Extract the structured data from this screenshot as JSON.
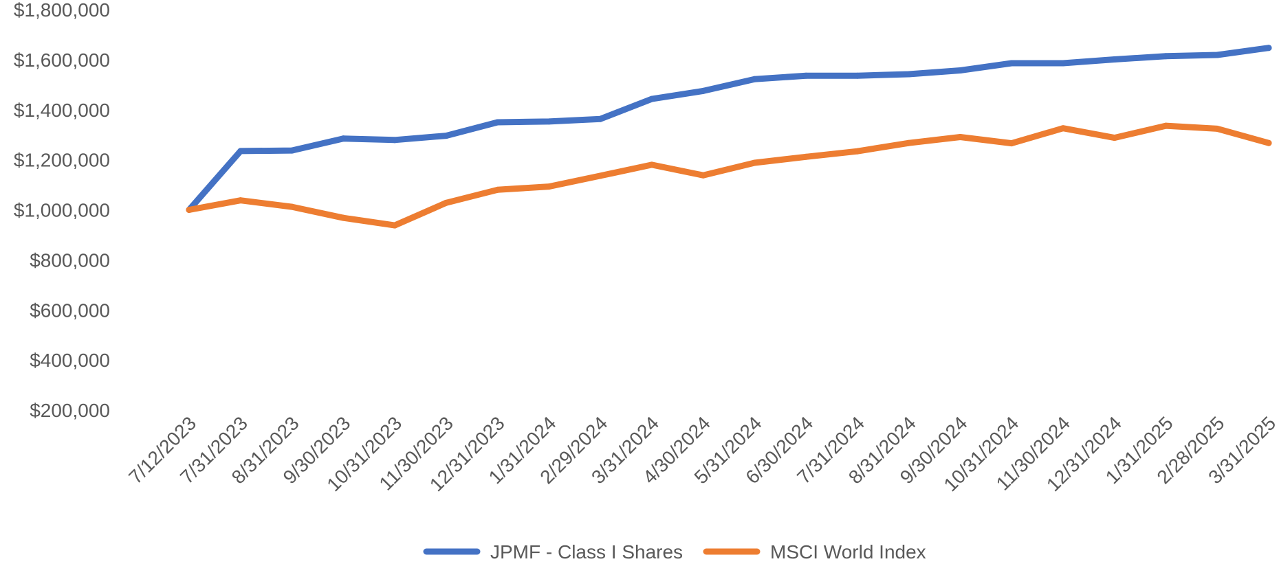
{
  "chart_data": {
    "type": "line",
    "title": "",
    "xlabel": "",
    "ylabel": "",
    "categories": [
      "7/12/2023",
      "7/31/2023",
      "8/31/2023",
      "9/30/2023",
      "10/31/2023",
      "11/30/2023",
      "12/31/2023",
      "1/31/2024",
      "2/29/2024",
      "3/31/2024",
      "4/30/2024",
      "5/31/2024",
      "6/30/2024",
      "7/31/2024",
      "8/31/2024",
      "9/30/2024",
      "10/31/2024",
      "11/30/2024",
      "12/31/2024",
      "1/31/2025",
      "2/28/2025",
      "3/31/2025"
    ],
    "y_ticks": [
      "$1,800,000",
      "$1,600,000",
      "$1,400,000",
      "$1,200,000",
      "$1,000,000",
      "$800,000",
      "$600,000",
      "$400,000",
      "$200,000"
    ],
    "y_tick_values": [
      1800000,
      1600000,
      1400000,
      1200000,
      1000000,
      800000,
      600000,
      400000,
      200000
    ],
    "ylim": [
      200000,
      1800000
    ],
    "grid": false,
    "legend_position": "bottom",
    "series": [
      {
        "name": "JPMF - Class I Shares",
        "color": "#4472C4",
        "values": [
          1000000,
          1235000,
          1237000,
          1285000,
          1279000,
          1296000,
          1350000,
          1353000,
          1363000,
          1443000,
          1475000,
          1522000,
          1536000,
          1536000,
          1542000,
          1557000,
          1586000,
          1586000,
          1601000,
          1614000,
          1619000,
          1647000
        ]
      },
      {
        "name": "MSCI World Index",
        "color": "#ED7D31",
        "values": [
          1000000,
          1038000,
          1012000,
          968000,
          938000,
          1028000,
          1080000,
          1093000,
          1136000,
          1180000,
          1138000,
          1188000,
          1212000,
          1234000,
          1267000,
          1291000,
          1266000,
          1326000,
          1288000,
          1336000,
          1324000,
          1267000
        ]
      }
    ]
  }
}
